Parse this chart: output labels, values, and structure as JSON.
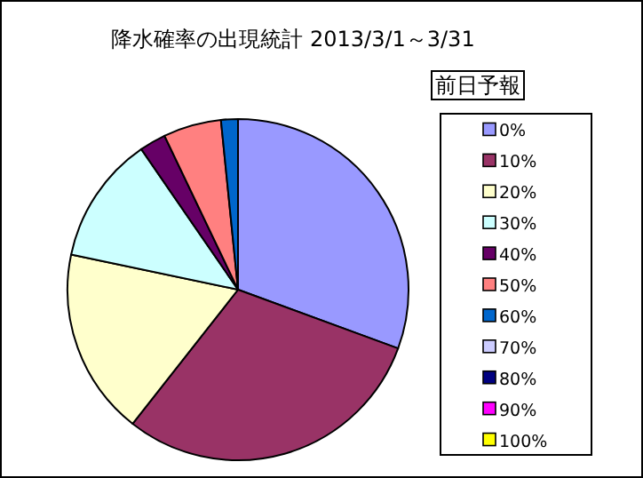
{
  "chart_data": {
    "type": "pie",
    "title": "降水確率の出現統計 2013/3/1～3/31",
    "legend_title": "前日予報",
    "legend": "right",
    "categories": [
      "0%",
      "10%",
      "20%",
      "30%",
      "40%",
      "50%",
      "60%",
      "70%",
      "80%",
      "90%",
      "100%"
    ],
    "values": [
      30.6,
      30,
      17.7,
      12.1,
      2.5,
      5.5,
      1.6,
      0,
      0,
      0,
      0
    ],
    "colors": [
      "#9999ff",
      "#993366",
      "#ffffcc",
      "#ccffff",
      "#660066",
      "#ff8080",
      "#0066cc",
      "#ccccff",
      "#000080",
      "#ff00ff",
      "#ffff00"
    ]
  }
}
